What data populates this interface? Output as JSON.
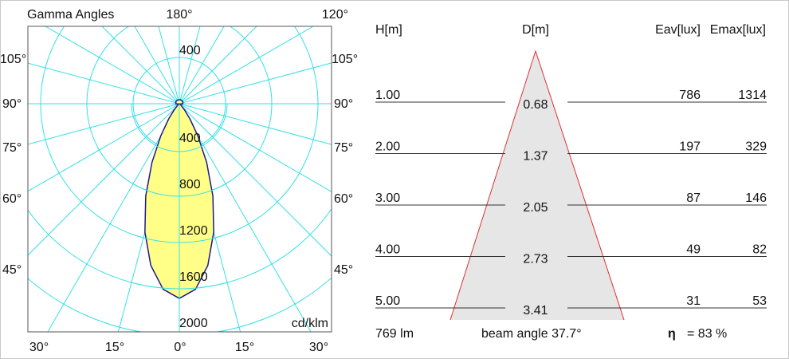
{
  "chart_data": [
    {
      "type": "polar",
      "title": "Gamma Angles",
      "unit_label": "cd/klm",
      "top_labels": [
        "180°",
        "120°"
      ],
      "side_labels": [
        "105°",
        "90°",
        "75°",
        "60°",
        "45°"
      ],
      "bottom_labels": [
        "30°",
        "15°",
        "0°",
        "15°",
        "30°"
      ],
      "radial_ticks": [
        "400",
        "800",
        "1200",
        "1600",
        "2000"
      ],
      "radial_tick_values": [
        400,
        800,
        1200,
        1600,
        2000
      ],
      "top_ring_label": "400",
      "rlim": [
        0,
        2000
      ],
      "angle_step_deg": 15,
      "grid": true,
      "grid_color": "#33e0e8",
      "fill_color": "#ffff88",
      "line_color": "#1a1a8c",
      "series": [
        {
          "gamma_deg": [
            0,
            5,
            10,
            15,
            20,
            25,
            30,
            35,
            40,
            45,
            50,
            55,
            60,
            75,
            90,
            120,
            150,
            180
          ],
          "intensity": [
            1683,
            1610,
            1420,
            1150,
            850,
            560,
            320,
            160,
            70,
            25,
            10,
            4,
            3,
            10,
            30,
            35,
            35,
            35
          ]
        }
      ]
    },
    {
      "type": "table",
      "columns": [
        "H[m]",
        "D[m]",
        "Eav[lux]",
        "Emax[lux]"
      ],
      "rows": [
        {
          "h": "1.00",
          "d": "0.68",
          "eav": "786",
          "emax": "1314"
        },
        {
          "h": "2.00",
          "d": "1.37",
          "eav": "197",
          "emax": "329"
        },
        {
          "h": "3.00",
          "d": "2.05",
          "eav": "87",
          "emax": "146"
        },
        {
          "h": "4.00",
          "d": "2.73",
          "eav": "49",
          "emax": "82"
        },
        {
          "h": "5.00",
          "d": "3.41",
          "eav": "31",
          "emax": "53"
        }
      ],
      "flux": "769 lm",
      "beam_angle": "beam angle 37.7°",
      "eta_symbol": "η",
      "efficiency": "= 83 %",
      "cone_fill": "#e6e6e6",
      "cone_stroke": "#e03030"
    }
  ]
}
